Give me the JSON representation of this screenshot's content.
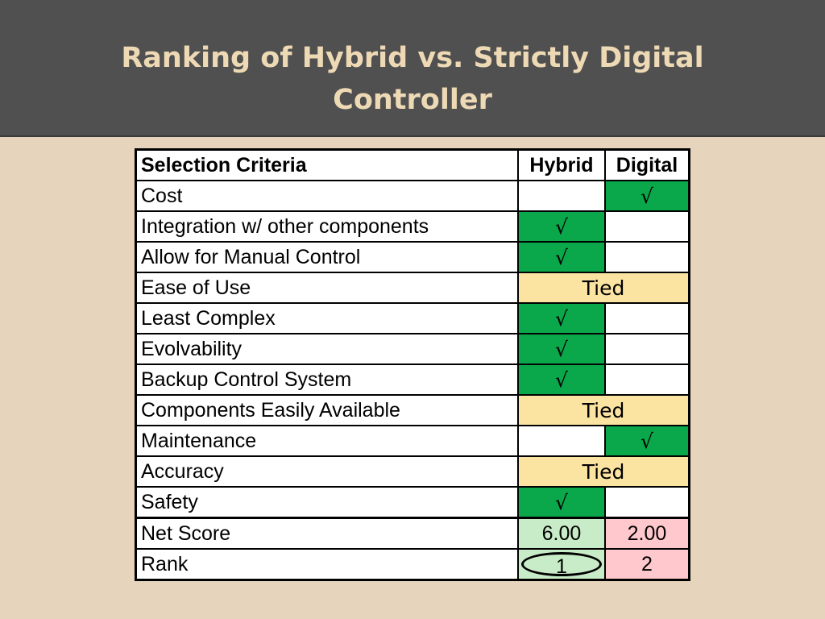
{
  "slide": {
    "title_line1": "Ranking of Hybrid vs. Strictly Digital",
    "title_line2": "Controller"
  },
  "table": {
    "headers": [
      "Selection Criteria",
      "Hybrid",
      "Digital"
    ],
    "check": "√",
    "tied_label": "Tied",
    "rows": [
      {
        "criterion": "Cost",
        "winner": "digital"
      },
      {
        "criterion": "Integration w/ other components",
        "winner": "hybrid"
      },
      {
        "criterion": "Allow for Manual Control",
        "winner": "hybrid"
      },
      {
        "criterion": "Ease of Use",
        "winner": "tied"
      },
      {
        "criterion": "Least Complex",
        "winner": "hybrid"
      },
      {
        "criterion": "Evolvability",
        "winner": "hybrid"
      },
      {
        "criterion": "Backup Control System",
        "winner": "hybrid"
      },
      {
        "criterion": "Components Easily Available",
        "winner": "tied"
      },
      {
        "criterion": "Maintenance",
        "winner": "digital"
      },
      {
        "criterion": "Accuracy",
        "winner": "tied"
      },
      {
        "criterion": "Safety",
        "winner": "hybrid"
      }
    ],
    "net_score": {
      "label": "Net Score",
      "hybrid": "6.00",
      "digital": "2.00"
    },
    "rank": {
      "label": "Rank",
      "hybrid": "1",
      "digital": "2"
    }
  },
  "colors": {
    "title_bar": "#505050",
    "title_text": "#eed9b5",
    "background": "#e6d5bc",
    "check_green": "#0aa84a",
    "tied_yellow": "#fbe3a2",
    "score_green": "#c8ecc8",
    "score_pink": "#ffc8cc"
  }
}
